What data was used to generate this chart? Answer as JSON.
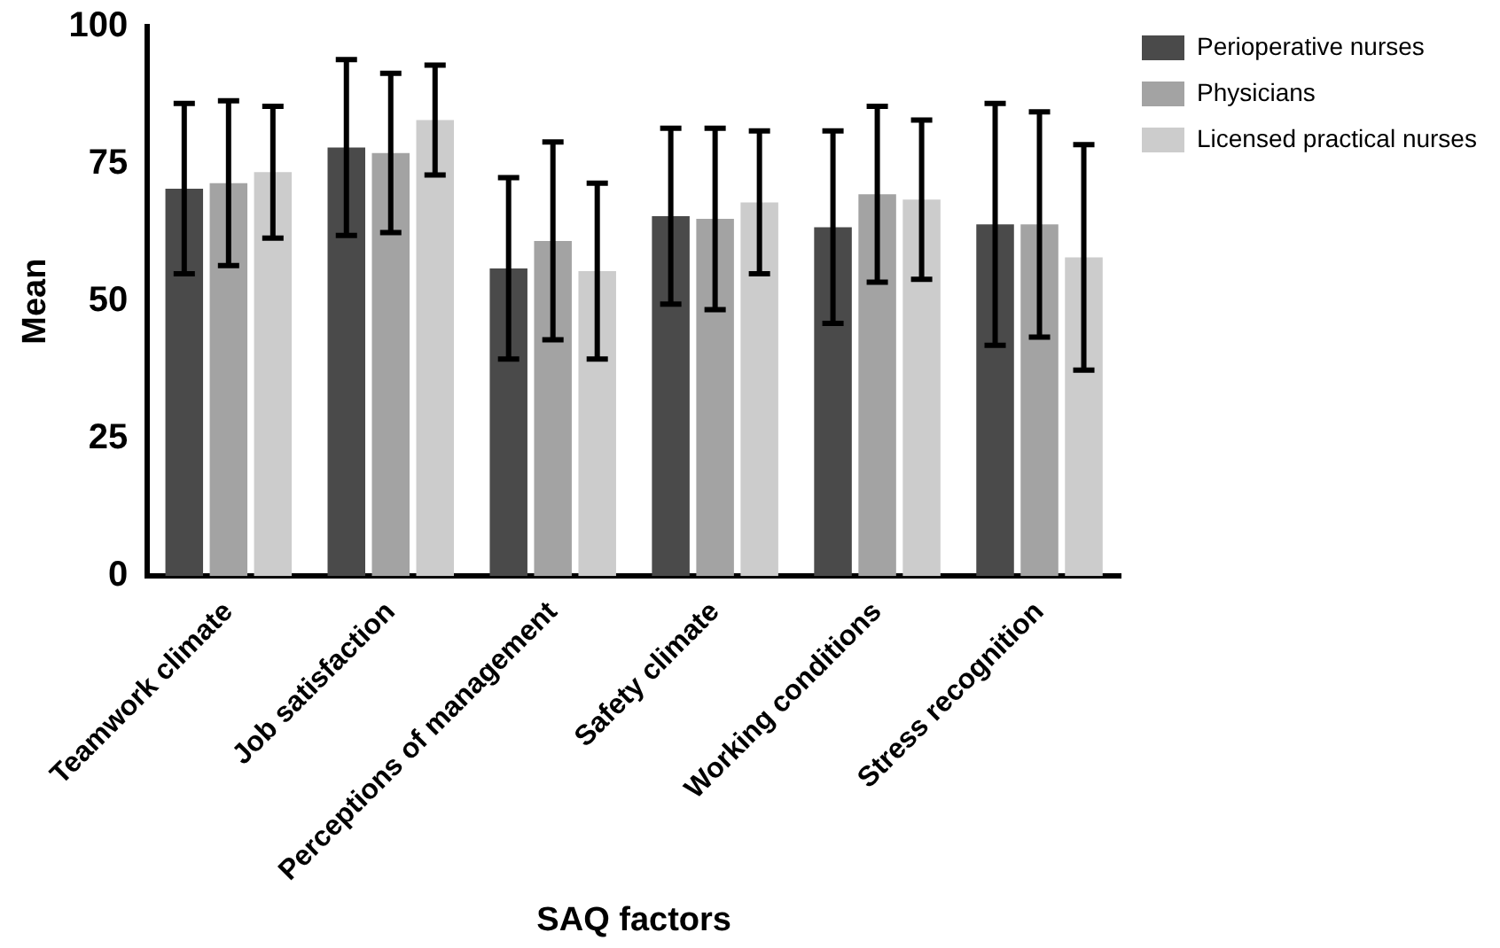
{
  "chart_data": {
    "type": "bar",
    "xlabel": "SAQ factors",
    "ylabel": "Mean",
    "categories": [
      "Teamwork climate",
      "Job satisfaction",
      "Perceptions of management",
      "Safety climate",
      "Working conditions",
      "Stress recognition"
    ],
    "series": [
      {
        "name": "Perioperative nurses",
        "color": "#4a4a4a",
        "values": [
          70.5,
          78,
          56,
          65.5,
          63.5,
          64
        ],
        "errors": [
          15.5,
          16,
          16.5,
          16,
          17.5,
          22
        ]
      },
      {
        "name": "Physicians",
        "color": "#a3a3a3",
        "values": [
          71.5,
          77,
          61,
          65,
          69.5,
          64
        ],
        "errors": [
          15,
          14.5,
          18,
          16.5,
          16,
          20.5
        ]
      },
      {
        "name": "Licensed practical nurses",
        "color": "#cccccc",
        "values": [
          73.5,
          83,
          55.5,
          68,
          68.5,
          58
        ],
        "errors": [
          12,
          10,
          16,
          13,
          14.5,
          20.5
        ]
      }
    ],
    "ylim": [
      0,
      100
    ],
    "yticks": [
      0,
      25,
      50,
      75,
      100
    ],
    "grid": false,
    "legend": "top right"
  }
}
